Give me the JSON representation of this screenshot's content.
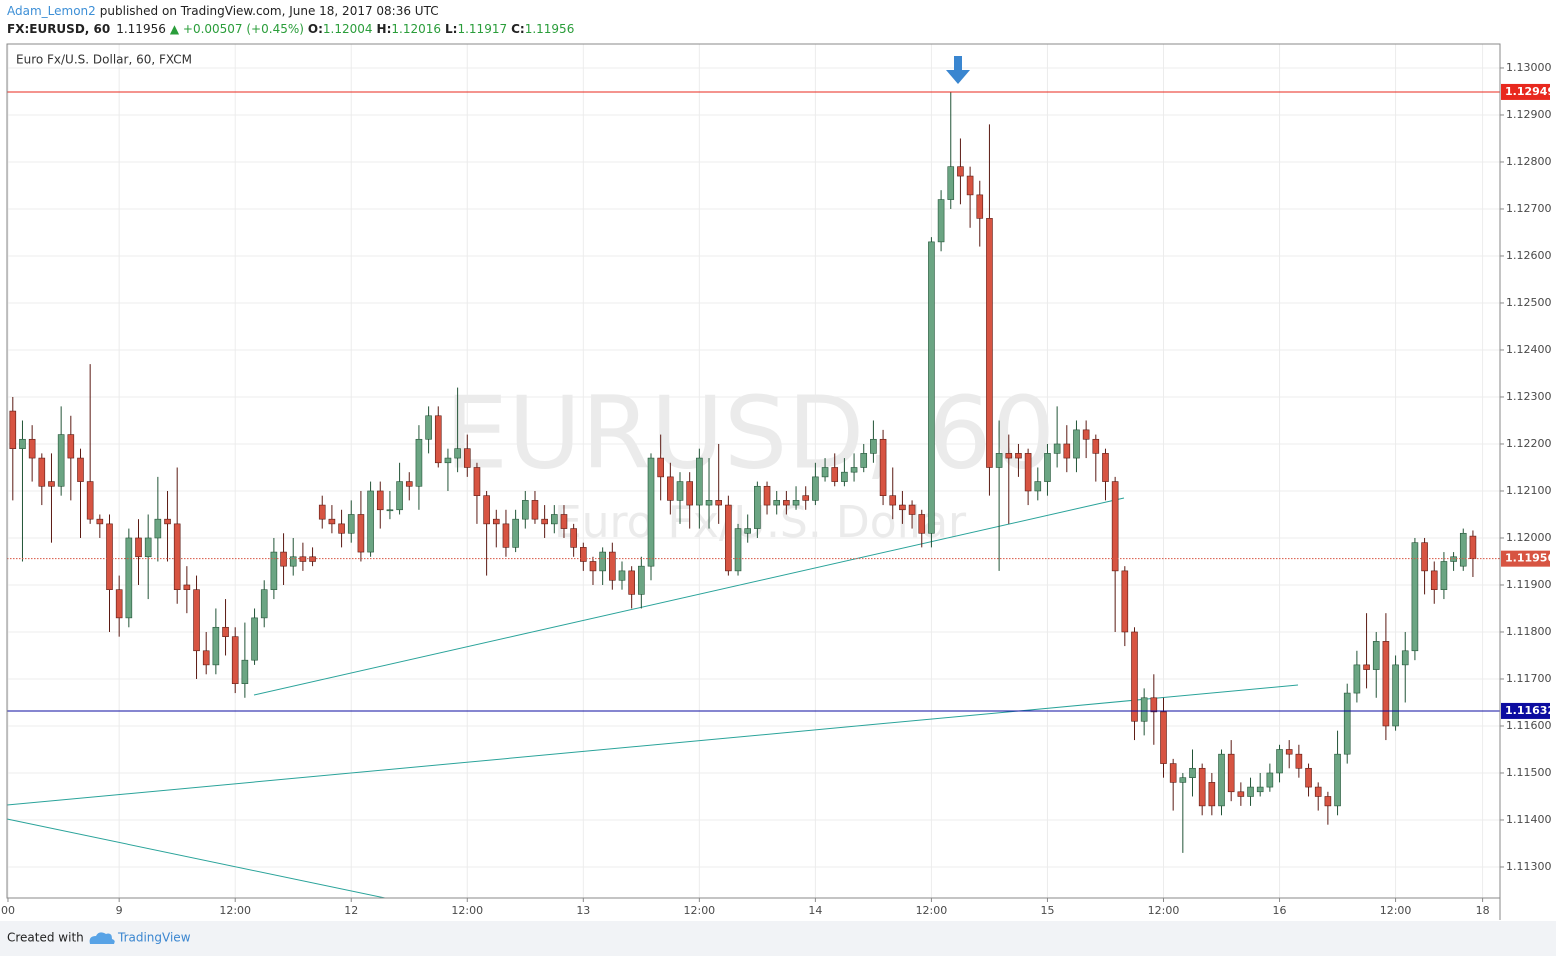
{
  "header": {
    "author": "Adam_Lemon2",
    "published": "published on TradingView.com, June 18, 2017 08:36 UTC",
    "symbol": "FX:EURUSD, 60",
    "last": "1.11956",
    "change": "▲ +0.00507 (+0.45%)",
    "ohlc": [
      {
        "label": "O:",
        "value": "1.12004"
      },
      {
        "label": "H:",
        "value": "1.12016"
      },
      {
        "label": "L:",
        "value": "1.11917"
      },
      {
        "label": "C:",
        "value": "1.11956"
      }
    ]
  },
  "footer": {
    "created": "Created with",
    "brand": "TradingView"
  },
  "chart_data": {
    "type": "candlestick",
    "title": "Euro Fx/U.S. Dollar, 60, FXCM",
    "watermark": [
      "EURUSD, 60",
      "Euro Fx/U.S. Dollar"
    ],
    "up_color": "#6ba583",
    "down_color": "#d75442",
    "up_border": "#225437",
    "down_border": "#5b1a13",
    "grid": true,
    "xlim": [
      -0.6,
      153.8
    ],
    "xticks": [
      {
        "value": -0.5,
        "label": "00"
      },
      {
        "value": 11,
        "label": "9"
      },
      {
        "value": 23,
        "label": "12:00"
      },
      {
        "value": 35,
        "label": "12"
      },
      {
        "value": 47,
        "label": "12:00"
      },
      {
        "value": 59,
        "label": "13"
      },
      {
        "value": 71,
        "label": "12:00"
      },
      {
        "value": 83,
        "label": "14"
      },
      {
        "value": 95,
        "label": "12:00"
      },
      {
        "value": 107,
        "label": "15"
      },
      {
        "value": 119,
        "label": "12:00"
      },
      {
        "value": 131,
        "label": "16"
      },
      {
        "value": 143,
        "label": "12:00"
      },
      {
        "value": 152,
        "label": "18"
      }
    ],
    "ylim": [
      1.11234,
      1.13051
    ],
    "yticks": [
      {
        "value": 1.113,
        "label": "1.11300"
      },
      {
        "value": 1.114,
        "label": "1.11400"
      },
      {
        "value": 1.115,
        "label": "1.11500"
      },
      {
        "value": 1.116,
        "label": "1.11600"
      },
      {
        "value": 1.117,
        "label": "1.11700"
      },
      {
        "value": 1.118,
        "label": "1.11800"
      },
      {
        "value": 1.119,
        "label": "1.11900"
      },
      {
        "value": 1.12,
        "label": "1.12000"
      },
      {
        "value": 1.121,
        "label": "1.12100"
      },
      {
        "value": 1.122,
        "label": "1.12200"
      },
      {
        "value": 1.123,
        "label": "1.12300"
      },
      {
        "value": 1.124,
        "label": "1.12400"
      },
      {
        "value": 1.125,
        "label": "1.12500"
      },
      {
        "value": 1.126,
        "label": "1.12600"
      },
      {
        "value": 1.127,
        "label": "1.12700"
      },
      {
        "value": 1.128,
        "label": "1.12800"
      },
      {
        "value": 1.129,
        "label": "1.12900"
      },
      {
        "value": 1.13,
        "label": "1.13000"
      }
    ],
    "hlines": [
      {
        "value": 1.12949,
        "color": "#e8281e",
        "style": "solid"
      },
      {
        "value": 1.11632,
        "color": "#0c0ca0",
        "style": "solid"
      },
      {
        "value": 1.11956,
        "color": "#d75442",
        "style": "dotted"
      }
    ],
    "series": [
      {
        "name": "EURUSD",
        "open": [
          1.1227,
          1.1219,
          1.1221,
          1.1217,
          1.1212,
          1.1211,
          1.1222,
          1.1217,
          1.1212,
          1.1204,
          1.1203,
          1.1189,
          1.1183,
          1.12,
          1.1196,
          1.12,
          1.1204,
          1.1203,
          1.119,
          1.1189,
          1.1176,
          1.1173,
          1.1181,
          1.1179,
          1.1169,
          1.1174,
          1.1183,
          1.1189,
          1.1197,
          1.1194,
          1.1196,
          1.1196,
          1.1207,
          1.1204,
          1.1203,
          1.1201,
          1.1205,
          1.1197,
          1.121,
          1.1206,
          1.1206,
          1.1212,
          1.1211,
          1.1221,
          1.1226,
          1.1216,
          1.1217,
          1.1219,
          1.1215,
          1.1209,
          1.1204,
          1.1203,
          1.1198,
          1.1204,
          1.1208,
          1.1204,
          1.1203,
          1.1205,
          1.1202,
          1.1198,
          1.1195,
          1.1193,
          1.1197,
          1.1191,
          1.1193,
          1.1188,
          1.1194,
          1.1217,
          1.1213,
          1.1208,
          1.1212,
          1.1207,
          1.1207,
          1.1208,
          1.1207,
          1.1193,
          1.1201,
          1.1202,
          1.1211,
          1.1207,
          1.1208,
          1.1207,
          1.1209,
          1.1208,
          1.1213,
          1.1215,
          1.1212,
          1.1214,
          1.1215,
          1.1218,
          1.1221,
          1.1209,
          1.1207,
          1.1207,
          1.1205,
          1.1201,
          1.1263,
          1.1272,
          1.1279,
          1.1277,
          1.1273,
          1.1268,
          1.1215,
          1.1218,
          1.1218,
          1.1218,
          1.121,
          1.1212,
          1.1218,
          1.122,
          1.1217,
          1.1223,
          1.1221,
          1.1218,
          1.1212,
          1.1193,
          1.118,
          1.1161,
          1.1166,
          1.1163,
          1.1152,
          1.1148,
          1.1149,
          1.1151,
          1.1148,
          1.1143,
          1.1154,
          1.1146,
          1.1145,
          1.1146,
          1.1147,
          1.115,
          1.1155,
          1.1154,
          1.1151,
          1.1147,
          1.1145,
          1.1143,
          1.1154,
          1.1167,
          1.1173,
          1.1172,
          1.1178,
          1.116,
          1.1173,
          1.1176,
          1.1199,
          1.1193,
          1.1189,
          1.1195,
          1.1194,
          1.12004
        ],
        "high": [
          1.123,
          1.1225,
          1.1224,
          1.1218,
          1.1218,
          1.1228,
          1.1226,
          1.1219,
          1.1237,
          1.1205,
          1.1205,
          1.1192,
          1.1202,
          1.1204,
          1.1205,
          1.1213,
          1.121,
          1.1215,
          1.1194,
          1.1192,
          1.118,
          1.1185,
          1.1187,
          1.1181,
          1.1182,
          1.1185,
          1.1191,
          1.12,
          1.1201,
          1.12,
          1.1199,
          1.1198,
          1.1209,
          1.1207,
          1.1206,
          1.1208,
          1.121,
          1.1212,
          1.1212,
          1.121,
          1.1216,
          1.1214,
          1.1224,
          1.1228,
          1.1228,
          1.1219,
          1.1232,
          1.1222,
          1.1216,
          1.121,
          1.1206,
          1.1206,
          1.1206,
          1.121,
          1.121,
          1.1207,
          1.1207,
          1.1207,
          1.1203,
          1.1199,
          1.1196,
          1.1198,
          1.1199,
          1.1195,
          1.1194,
          1.1196,
          1.1218,
          1.1222,
          1.1216,
          1.1214,
          1.1214,
          1.1219,
          1.1217,
          1.122,
          1.1209,
          1.1203,
          1.1205,
          1.1212,
          1.1212,
          1.121,
          1.121,
          1.1211,
          1.1211,
          1.1216,
          1.1217,
          1.1218,
          1.1217,
          1.1218,
          1.122,
          1.1225,
          1.1223,
          1.1215,
          1.121,
          1.1208,
          1.1206,
          1.1264,
          1.1274,
          1.12949,
          1.1285,
          1.1279,
          1.1276,
          1.1288,
          1.1225,
          1.1222,
          1.122,
          1.1219,
          1.1215,
          1.122,
          1.1228,
          1.1224,
          1.1225,
          1.1225,
          1.1222,
          1.1219,
          1.1213,
          1.1194,
          1.1181,
          1.1168,
          1.1171,
          1.1166,
          1.1153,
          1.115,
          1.1155,
          1.1152,
          1.115,
          1.1155,
          1.1157,
          1.1148,
          1.1149,
          1.115,
          1.1152,
          1.1156,
          1.1157,
          1.1156,
          1.1152,
          1.1148,
          1.1146,
          1.1159,
          1.1169,
          1.1176,
          1.1184,
          1.118,
          1.1184,
          1.1175,
          1.118,
          1.12,
          1.12,
          1.1195,
          1.1197,
          1.1197,
          1.1202,
          1.12016
        ],
        "low": [
          1.1208,
          1.1195,
          1.1212,
          1.1207,
          1.1199,
          1.1209,
          1.1208,
          1.12,
          1.1203,
          1.12,
          1.118,
          1.1179,
          1.1181,
          1.119,
          1.1187,
          1.1195,
          1.1195,
          1.1186,
          1.1184,
          1.117,
          1.1171,
          1.1171,
          1.1175,
          1.1167,
          1.1166,
          1.1173,
          1.1181,
          1.1187,
          1.119,
          1.1192,
          1.1193,
          1.1194,
          1.1202,
          1.1201,
          1.1198,
          1.1199,
          1.1195,
          1.1196,
          1.1202,
          1.1204,
          1.1205,
          1.1208,
          1.1206,
          1.1218,
          1.1215,
          1.121,
          1.1214,
          1.1213,
          1.1203,
          1.1192,
          1.1198,
          1.1196,
          1.1197,
          1.1202,
          1.1203,
          1.12,
          1.1201,
          1.12,
          1.1196,
          1.1193,
          1.119,
          1.119,
          1.1189,
          1.1189,
          1.1185,
          1.1185,
          1.1191,
          1.1208,
          1.1205,
          1.1203,
          1.1202,
          1.1202,
          1.1202,
          1.1203,
          1.1192,
          1.1192,
          1.1199,
          1.12,
          1.1205,
          1.1205,
          1.1205,
          1.1206,
          1.1206,
          1.1207,
          1.1212,
          1.1211,
          1.1211,
          1.1212,
          1.1214,
          1.1216,
          1.1207,
          1.1204,
          1.1203,
          1.1202,
          1.1198,
          1.1198,
          1.1261,
          1.127,
          1.1271,
          1.1266,
          1.1262,
          1.1209,
          1.1193,
          1.1203,
          1.1213,
          1.1207,
          1.1208,
          1.1209,
          1.1215,
          1.1214,
          1.1214,
          1.1217,
          1.1212,
          1.1208,
          1.118,
          1.1177,
          1.1157,
          1.1158,
          1.1156,
          1.1149,
          1.1142,
          1.1133,
          1.1145,
          1.1141,
          1.1141,
          1.1141,
          1.1144,
          1.1143,
          1.1143,
          1.1145,
          1.1146,
          1.1148,
          1.1151,
          1.1149,
          1.1145,
          1.1142,
          1.1139,
          1.1141,
          1.1152,
          1.1165,
          1.1168,
          1.1166,
          1.1157,
          1.1159,
          1.1165,
          1.1174,
          1.1188,
          1.1186,
          1.1187,
          1.1193,
          1.1193,
          1.11917
        ],
        "close": [
          1.1219,
          1.1221,
          1.1217,
          1.1211,
          1.1211,
          1.1222,
          1.1217,
          1.1212,
          1.1204,
          1.1203,
          1.1189,
          1.1183,
          1.12,
          1.1196,
          1.12,
          1.1204,
          1.1203,
          1.1189,
          1.1189,
          1.1176,
          1.1173,
          1.1181,
          1.1179,
          1.1169,
          1.1174,
          1.1183,
          1.1189,
          1.1197,
          1.1194,
          1.1196,
          1.1195,
          1.1195,
          1.1204,
          1.1203,
          1.1201,
          1.1205,
          1.1197,
          1.121,
          1.1206,
          1.1206,
          1.1212,
          1.1211,
          1.1221,
          1.1226,
          1.1216,
          1.1217,
          1.1219,
          1.1215,
          1.1209,
          1.1203,
          1.1203,
          1.1198,
          1.1204,
          1.1208,
          1.1204,
          1.1203,
          1.1205,
          1.1202,
          1.1198,
          1.1195,
          1.1193,
          1.1197,
          1.1191,
          1.1193,
          1.1188,
          1.1194,
          1.1217,
          1.1213,
          1.1208,
          1.1212,
          1.1207,
          1.1217,
          1.1208,
          1.1207,
          1.1193,
          1.1202,
          1.1202,
          1.1211,
          1.1207,
          1.1208,
          1.1207,
          1.1208,
          1.1208,
          1.1213,
          1.1215,
          1.1212,
          1.1214,
          1.1215,
          1.1218,
          1.1221,
          1.1209,
          1.1207,
          1.1206,
          1.1205,
          1.1201,
          1.1263,
          1.1272,
          1.1279,
          1.1277,
          1.1273,
          1.1268,
          1.1215,
          1.1218,
          1.1217,
          1.1217,
          1.121,
          1.1212,
          1.1218,
          1.122,
          1.1217,
          1.1223,
          1.1221,
          1.1218,
          1.1212,
          1.1193,
          1.118,
          1.1161,
          1.1166,
          1.1163,
          1.1152,
          1.1148,
          1.1149,
          1.1151,
          1.1143,
          1.1143,
          1.1154,
          1.1146,
          1.1145,
          1.1147,
          1.1147,
          1.115,
          1.1155,
          1.1154,
          1.1151,
          1.1147,
          1.1145,
          1.1143,
          1.1154,
          1.1167,
          1.1173,
          1.1172,
          1.1178,
          1.116,
          1.1173,
          1.1176,
          1.1199,
          1.1193,
          1.1189,
          1.1195,
          1.1196,
          1.1201,
          1.11956
        ]
      }
    ]
  }
}
